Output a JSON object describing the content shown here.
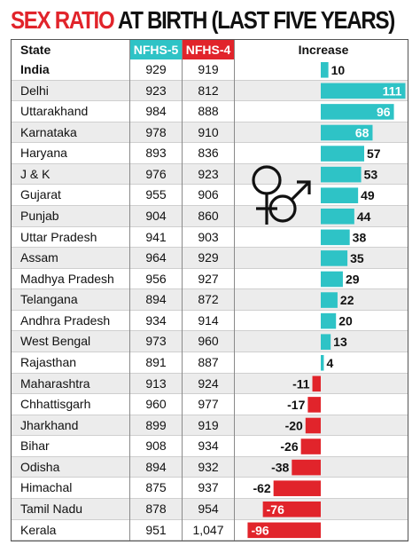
{
  "title": {
    "part1": "SEX RATIO",
    "part2": "AT BIRTH (LAST FIVE YEARS)"
  },
  "headers": {
    "state": "State",
    "nfhs5": "NFHS-5",
    "nfhs4": "NFHS-4",
    "increase": "Increase"
  },
  "colors": {
    "nfhs5": "#2ec3c6",
    "nfhs4": "#e1242b",
    "positive_bar": "#2ec3c6",
    "negative_bar": "#e1242b",
    "row_shade": "#ececec"
  },
  "decoration": "gender-symbols-icon",
  "chart_data": {
    "type": "table",
    "columns": [
      "State",
      "NFHS-5",
      "NFHS-4",
      "Increase"
    ],
    "rows": [
      {
        "state": "India",
        "nfhs5": "929",
        "nfhs4": "919",
        "increase": 10,
        "bold": true
      },
      {
        "state": "Delhi",
        "nfhs5": "923",
        "nfhs4": "812",
        "increase": 111
      },
      {
        "state": "Uttarakhand",
        "nfhs5": "984",
        "nfhs4": "888",
        "increase": 96
      },
      {
        "state": "Karnataka",
        "nfhs5": "978",
        "nfhs4": "910",
        "increase": 68
      },
      {
        "state": "Haryana",
        "nfhs5": "893",
        "nfhs4": "836",
        "increase": 57
      },
      {
        "state": "J & K",
        "nfhs5": "976",
        "nfhs4": "923",
        "increase": 53
      },
      {
        "state": "Gujarat",
        "nfhs5": "955",
        "nfhs4": "906",
        "increase": 49
      },
      {
        "state": "Punjab",
        "nfhs5": "904",
        "nfhs4": "860",
        "increase": 44
      },
      {
        "state": "Uttar Pradesh",
        "nfhs5": "941",
        "nfhs4": "903",
        "increase": 38
      },
      {
        "state": "Assam",
        "nfhs5": "964",
        "nfhs4": "929",
        "increase": 35
      },
      {
        "state": "Madhya Pradesh",
        "nfhs5": "956",
        "nfhs4": "927",
        "increase": 29
      },
      {
        "state": "Telangana",
        "nfhs5": "894",
        "nfhs4": "872",
        "increase": 22
      },
      {
        "state": "Andhra Pradesh",
        "nfhs5": "934",
        "nfhs4": "914",
        "increase": 20
      },
      {
        "state": "West Bengal",
        "nfhs5": "973",
        "nfhs4": "960",
        "increase": 13
      },
      {
        "state": "Rajasthan",
        "nfhs5": "891",
        "nfhs4": "887",
        "increase": 4
      },
      {
        "state": "Maharashtra",
        "nfhs5": "913",
        "nfhs4": "924",
        "increase": -11
      },
      {
        "state": "Chhattisgarh",
        "nfhs5": "960",
        "nfhs4": "977",
        "increase": -17
      },
      {
        "state": "Jharkhand",
        "nfhs5": "899",
        "nfhs4": "919",
        "increase": -20
      },
      {
        "state": "Bihar",
        "nfhs5": "908",
        "nfhs4": "934",
        "increase": -26
      },
      {
        "state": "Odisha",
        "nfhs5": "894",
        "nfhs4": "932",
        "increase": -38
      },
      {
        "state": "Himachal",
        "nfhs5": "875",
        "nfhs4": "937",
        "increase": -62
      },
      {
        "state": "Tamil Nadu",
        "nfhs5": "878",
        "nfhs4": "954",
        "increase": -76
      },
      {
        "state": "Kerala",
        "nfhs5": "951",
        "nfhs4": "1,047",
        "increase": -96
      }
    ]
  }
}
